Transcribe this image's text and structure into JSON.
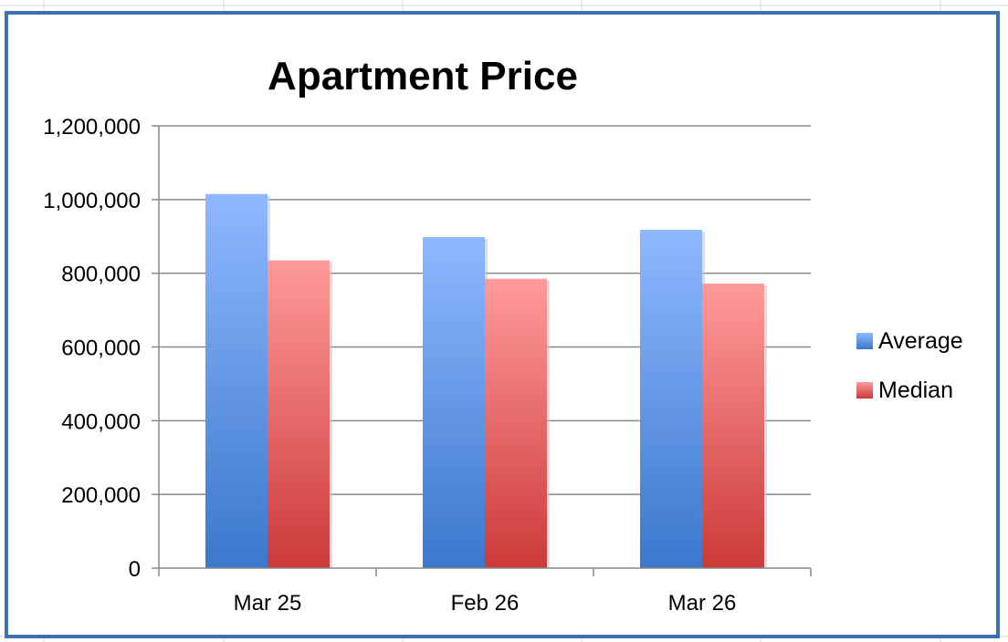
{
  "colors": {
    "frame": "#3e6fb0",
    "gridline": "#888888",
    "average_top": "#8fb8ff",
    "average_bottom": "#3a78cc",
    "median_top": "#ff9a9a",
    "median_bottom": "#cc3a3a"
  },
  "chart_data": {
    "type": "bar",
    "title": "Apartment Price",
    "categories": [
      "Mar 25",
      "Feb 26",
      "Mar 26"
    ],
    "series": [
      {
        "name": "Average",
        "values": [
          1015000,
          898000,
          918000
        ]
      },
      {
        "name": "Median",
        "values": [
          835000,
          785000,
          772000
        ]
      }
    ],
    "ylim": [
      0,
      1200000
    ],
    "yticks": [
      0,
      200000,
      400000,
      600000,
      800000,
      1000000,
      1200000
    ],
    "ytick_labels": [
      "0",
      "200,000",
      "400,000",
      "600,000",
      "800,000",
      "1,000,000",
      "1,200,000"
    ],
    "xlabel": "",
    "ylabel": "",
    "grid": true,
    "legend_position": "right"
  }
}
